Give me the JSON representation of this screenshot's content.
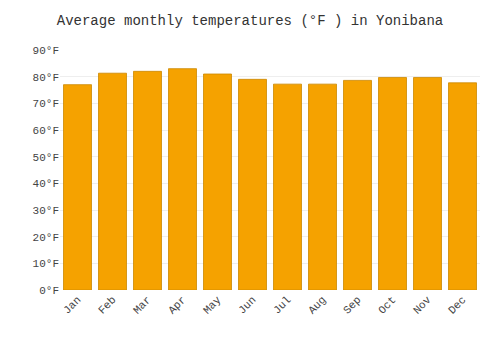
{
  "chart_data": {
    "type": "bar",
    "title": "Average monthly temperatures (°F ) in Yonibana",
    "categories": [
      "Jan",
      "Feb",
      "Mar",
      "Apr",
      "May",
      "Jun",
      "Jul",
      "Aug",
      "Sep",
      "Oct",
      "Nov",
      "Dec"
    ],
    "values": [
      77.0,
      81.3,
      82.0,
      83.0,
      81.0,
      79.0,
      77.2,
      77.2,
      78.6,
      79.7,
      79.7,
      77.7
    ],
    "color": "#F5A200",
    "ylim": [
      0,
      90
    ],
    "yticks": [
      {
        "value": 0,
        "label": "0°F"
      },
      {
        "value": 10,
        "label": "10°F"
      },
      {
        "value": 20,
        "label": "20°F"
      },
      {
        "value": 30,
        "label": "30°F"
      },
      {
        "value": 40,
        "label": "40°F"
      },
      {
        "value": 50,
        "label": "50°F"
      },
      {
        "value": 60,
        "label": "60°F"
      },
      {
        "value": 70,
        "label": "70°F"
      },
      {
        "value": 80,
        "label": "80°F"
      },
      {
        "value": 90,
        "label": "90°F"
      }
    ],
    "grid": true
  }
}
